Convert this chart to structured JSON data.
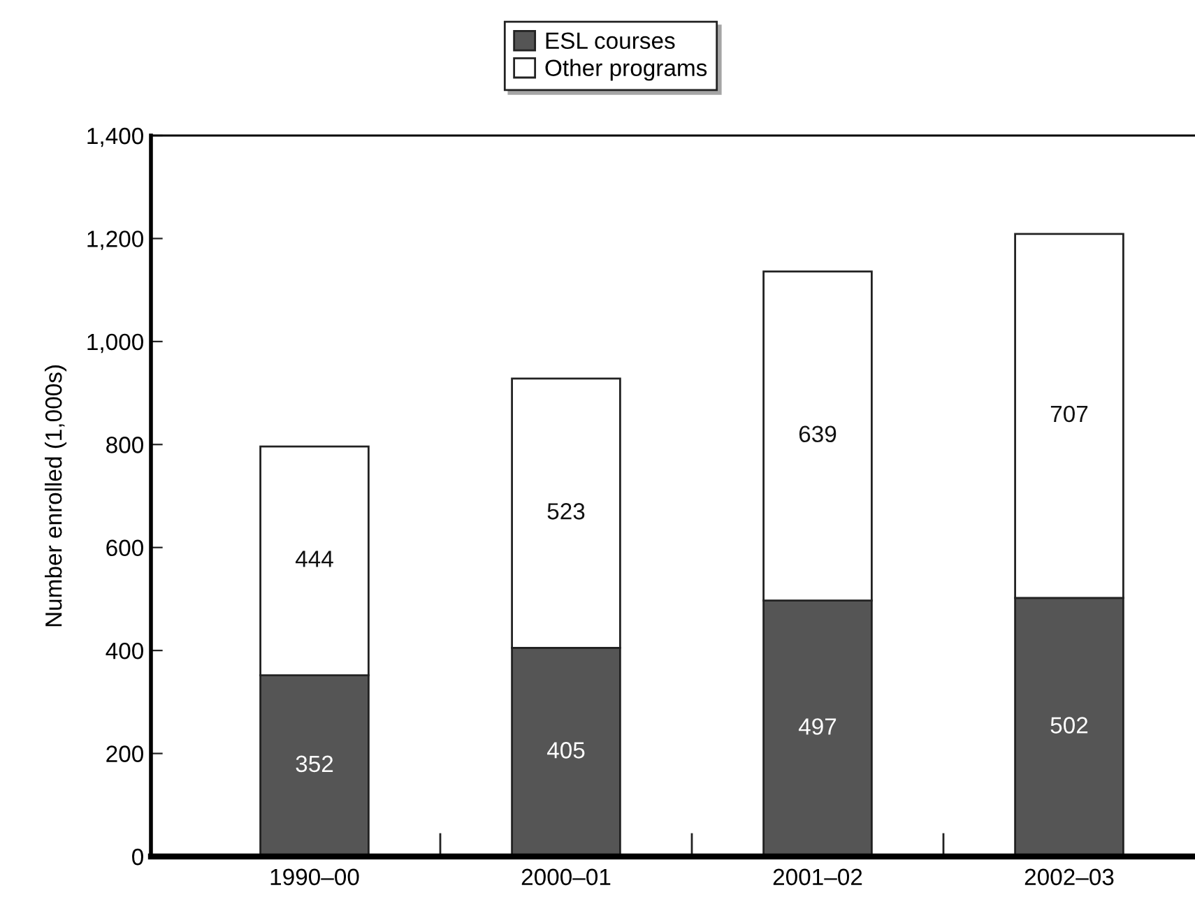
{
  "chart_data": {
    "type": "bar",
    "stacked": true,
    "ylabel": "Number enrolled (1,000s)",
    "categories": [
      "1990–00",
      "2000–01",
      "2001–02",
      "2002–03"
    ],
    "series": [
      {
        "name": "ESL courses",
        "color": "#555555",
        "values": [
          352,
          405,
          497,
          502
        ]
      },
      {
        "name": "Other programs",
        "color": "#ffffff",
        "values": [
          444,
          523,
          639,
          707
        ]
      }
    ],
    "ylim": [
      0,
      1400
    ],
    "yticks": [
      0,
      200,
      400,
      600,
      800,
      {
        "value": 1000,
        "label": "1,000"
      },
      {
        "value": 1200,
        "label": "1,200"
      },
      {
        "value": 1400,
        "label": "1,400"
      }
    ],
    "data_labels": true,
    "legend": "top",
    "grid": false
  }
}
